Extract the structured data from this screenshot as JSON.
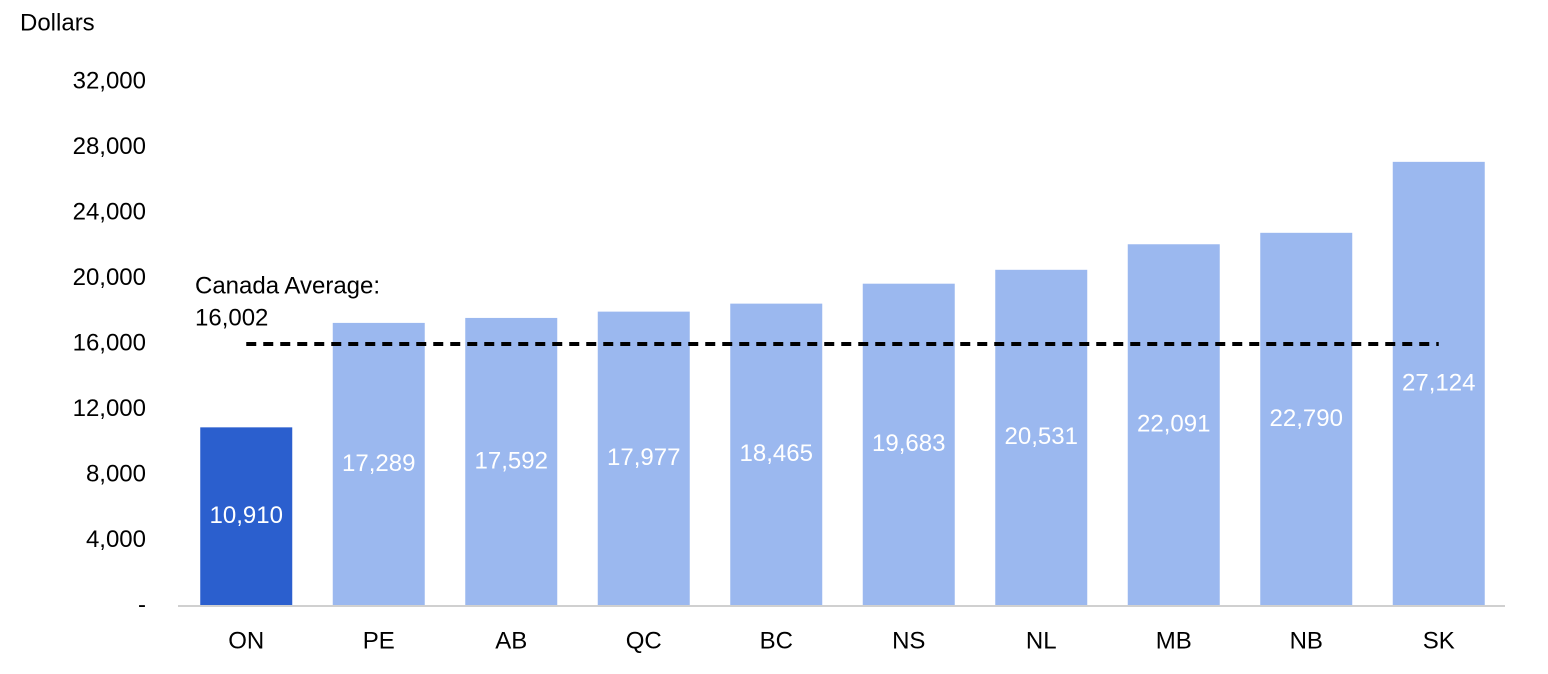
{
  "chart_data": {
    "type": "bar",
    "y_label": "Dollars",
    "categories": [
      "ON",
      "PE",
      "AB",
      "QC",
      "BC",
      "NS",
      "NL",
      "MB",
      "NB",
      "SK"
    ],
    "values": [
      10910,
      17289,
      17592,
      17977,
      18465,
      19683,
      20531,
      22091,
      22790,
      27124
    ],
    "value_labels": [
      "10,910",
      "17,289",
      "17,592",
      "17,977",
      "18,465",
      "19,683",
      "20,531",
      "22,091",
      "22,790",
      "27,124"
    ],
    "colors": [
      "#2b5fce",
      "#9bb8ef",
      "#9bb8ef",
      "#9bb8ef",
      "#9bb8ef",
      "#9bb8ef",
      "#9bb8ef",
      "#9bb8ef",
      "#9bb8ef",
      "#9bb8ef"
    ],
    "ylim": [
      0,
      32000
    ],
    "yticks": [
      {
        "value": 0,
        "label": "-"
      },
      {
        "value": 4000,
        "label": "4,000"
      },
      {
        "value": 8000,
        "label": "8,000"
      },
      {
        "value": 12000,
        "label": "12,000"
      },
      {
        "value": 16000,
        "label": "16,000"
      },
      {
        "value": 20000,
        "label": "20,000"
      },
      {
        "value": 24000,
        "label": "24,000"
      },
      {
        "value": 28000,
        "label": "28,000"
      },
      {
        "value": 32000,
        "label": "32,000"
      }
    ],
    "reference_line": {
      "value": 16002,
      "label": "Canada Average:",
      "value_label": "16,002",
      "color": "#000000"
    },
    "grid": false
  }
}
